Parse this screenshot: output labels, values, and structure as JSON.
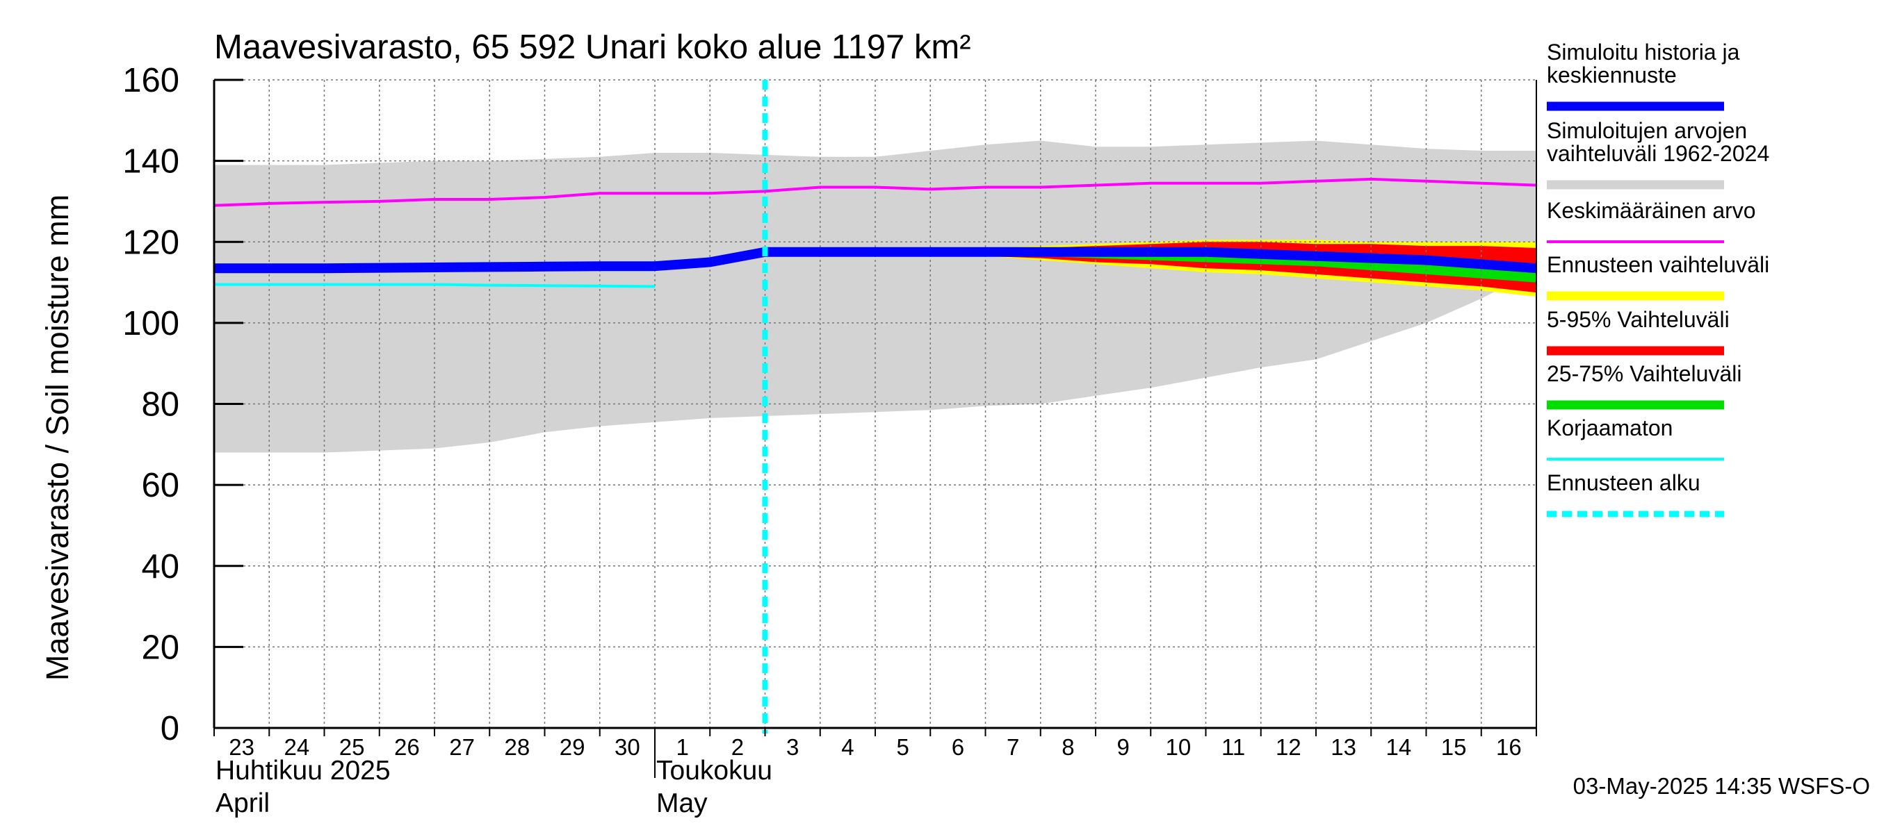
{
  "chart_data": {
    "type": "area",
    "title": "Maavesivarasto, 65 592 Unari koko alue 1197 km²",
    "ylabel": "Maavesivarasto / Soil moisture   mm",
    "ylim": [
      0,
      160
    ],
    "yticks": [
      0,
      20,
      40,
      60,
      80,
      100,
      120,
      140,
      160
    ],
    "grid": true,
    "legend_position": "right",
    "x_start_day": 23,
    "x_days": 25,
    "x_tick_labels": [
      "23",
      "24",
      "25",
      "26",
      "27",
      "28",
      "29",
      "30",
      "1",
      "2",
      "3",
      "4",
      "5",
      "6",
      "7",
      "8",
      "9",
      "10",
      "11",
      "12",
      "13",
      "14",
      "15",
      "16"
    ],
    "month_labels": [
      {
        "fi": "Huhtikuu  2025",
        "en": "April",
        "start": 0
      },
      {
        "fi": "Toukokuu",
        "en": "May",
        "start": 8
      }
    ],
    "forecast_start": 10.0,
    "timestamp": "03-May-2025 14:35 WSFS-O",
    "series": [
      {
        "name": "Simuloitujen arvojen vaihteluväli 1962-2024",
        "kind": "band",
        "color": "#d3d3d3",
        "x": [
          0,
          1,
          2,
          3,
          4,
          5,
          6,
          7,
          8,
          9,
          10,
          11,
          12,
          13,
          14,
          15,
          16,
          17,
          18,
          19,
          20,
          21,
          22,
          23,
          24
        ],
        "upper": [
          139,
          139,
          139,
          139.5,
          140,
          140,
          140.5,
          141,
          142,
          142,
          141.5,
          141,
          141,
          142.5,
          144,
          145,
          143.5,
          143.5,
          144,
          144.5,
          145,
          144,
          143,
          142.5,
          142.5
        ],
        "lower": [
          68,
          68,
          68,
          68.5,
          69,
          70.5,
          73,
          74.5,
          75.5,
          76.5,
          77,
          77.5,
          78,
          78.5,
          79.5,
          80,
          82,
          84,
          86.5,
          89,
          91,
          95.5,
          100,
          106,
          113
        ]
      },
      {
        "name": "Ennusteen vaihteluväli",
        "kind": "band",
        "color": "#ffff00",
        "x": [
          10,
          11,
          12,
          13,
          14,
          15,
          16,
          17,
          18,
          19,
          20,
          21,
          22,
          23,
          24
        ],
        "upper": [
          118,
          118,
          118,
          118,
          118.5,
          119,
          119.5,
          120,
          120.5,
          120.5,
          120.5,
          120,
          120,
          120,
          120
        ],
        "lower": [
          117,
          117,
          117,
          117,
          116.5,
          115.5,
          114.5,
          113.5,
          112.5,
          112,
          111,
          110,
          109,
          108,
          106.5
        ]
      },
      {
        "name": "5-95% Vaihteluväli",
        "kind": "band",
        "color": "#ff0000",
        "x": [
          10,
          11,
          12,
          13,
          14,
          15,
          16,
          17,
          18,
          19,
          20,
          21,
          22,
          23,
          24
        ],
        "upper": [
          117.5,
          117.5,
          117.5,
          117.5,
          118,
          118.5,
          119,
          119.5,
          120,
          120,
          119.5,
          119.5,
          119,
          119,
          118.5
        ],
        "lower": [
          117,
          117,
          117,
          117,
          116.5,
          116,
          115,
          114.5,
          113.5,
          113,
          112,
          111,
          110,
          109,
          107.5
        ]
      },
      {
        "name": "25-75% Vaihteluväli",
        "kind": "band",
        "color": "#00dd00",
        "x": [
          10,
          11,
          12,
          13,
          14,
          15,
          16,
          17,
          18,
          19,
          20,
          21,
          22,
          23,
          24
        ],
        "upper": [
          117.5,
          117.5,
          117.5,
          117.5,
          117.5,
          117.5,
          117.5,
          117.5,
          117.5,
          117.5,
          117,
          116.5,
          116,
          115,
          114
        ],
        "lower": [
          117,
          117,
          117,
          117,
          117,
          116.5,
          116,
          115.5,
          115,
          114.5,
          114,
          113,
          112,
          111,
          110
        ]
      },
      {
        "name": "Keskimääräinen arvo",
        "kind": "line",
        "color": "#ff00ff",
        "x": [
          0,
          1,
          2,
          3,
          4,
          5,
          6,
          7,
          8,
          9,
          10,
          11,
          12,
          13,
          14,
          15,
          16,
          17,
          18,
          19,
          20,
          21,
          22,
          23,
          24
        ],
        "values": [
          129,
          129.5,
          129.8,
          130,
          130.5,
          130.5,
          131,
          132,
          132,
          132,
          132.5,
          133.5,
          133.5,
          133,
          133.5,
          133.5,
          134,
          134.5,
          134.5,
          134.5,
          135,
          135.5,
          135,
          134.5,
          134
        ]
      },
      {
        "name": "Korjaamaton",
        "kind": "line",
        "color": "#00ffff",
        "x": [
          0,
          1,
          2,
          3,
          4,
          5,
          6,
          7,
          8
        ],
        "values": [
          109.5,
          109.5,
          109.5,
          109.5,
          109.5,
          109.3,
          109.2,
          109.1,
          109
        ]
      },
      {
        "name": "Simuloitu historia ja keskiennuste",
        "kind": "line",
        "color": "#0000ff",
        "x": [
          0,
          1,
          2,
          3,
          4,
          5,
          6,
          7,
          8,
          9,
          10,
          11,
          12,
          13,
          14,
          15,
          16,
          17,
          18,
          19,
          20,
          21,
          22,
          23,
          24
        ],
        "values": [
          113.5,
          113.5,
          113.5,
          113.6,
          113.7,
          113.8,
          113.9,
          114,
          114,
          115,
          117.5,
          117.5,
          117.5,
          117.5,
          117.5,
          117.5,
          117.5,
          117.5,
          117.5,
          117,
          116.5,
          116,
          115.5,
          114.5,
          113.5
        ]
      }
    ],
    "legend": [
      {
        "label": "Simuloitu historia ja keskiennuste",
        "color": "#0000ff",
        "style": "solid"
      },
      {
        "label": "Simuloitujen arvojen vaihteluväli 1962-2024",
        "color": "#d3d3d3",
        "style": "solid"
      },
      {
        "label": "Keskimääräinen arvo",
        "color": "#ff00ff",
        "style": "thin"
      },
      {
        "label": "Ennusteen vaihteluväli",
        "color": "#ffff00",
        "style": "solid"
      },
      {
        "label": "5-95% Vaihteluväli",
        "color": "#ff0000",
        "style": "solid"
      },
      {
        "label": "25-75% Vaihteluväli",
        "color": "#00dd00",
        "style": "solid"
      },
      {
        "label": "Korjaamaton",
        "color": "#00ffff",
        "style": "thin"
      },
      {
        "label": "Ennusteen alku",
        "color": "#00ffff",
        "style": "dashed"
      }
    ]
  }
}
